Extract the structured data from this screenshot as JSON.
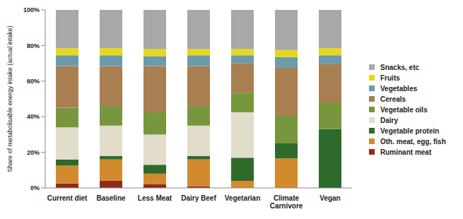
{
  "chart_data": {
    "type": "bar",
    "stacked": true,
    "grid": false,
    "legend": "right",
    "y_label": "Share of metabolisable energy intake (actual intake)",
    "categories": [
      "Current diet",
      "Baseline",
      "Less Meat",
      "Dairy Beef",
      "Vegetarian",
      "Climate Carnivore",
      "Vegan"
    ],
    "ylim": [
      0,
      100
    ],
    "yticks": [
      {
        "value": 0,
        "label": "0%"
      },
      {
        "value": 20,
        "label": "20%"
      },
      {
        "value": 40,
        "label": "40%"
      },
      {
        "value": 60,
        "label": "60%"
      },
      {
        "value": 80,
        "label": "80%"
      },
      {
        "value": 100,
        "label": "100%"
      }
    ],
    "series": [
      {
        "name": "Ruminant meat",
        "color": "#8e2a1e",
        "values": [
          2.5,
          4,
          2,
          1,
          0,
          0,
          0
        ]
      },
      {
        "name": "Oth. meat, egg, fish",
        "color": "#d38a2c",
        "values": [
          10,
          12,
          6,
          15,
          4,
          16.5,
          0
        ]
      },
      {
        "name": "Vegetable protein",
        "color": "#2f6a2d",
        "values": [
          3.5,
          2,
          5,
          2,
          13,
          8.5,
          33
        ]
      },
      {
        "name": "Dairy",
        "color": "#e2dccb",
        "values": [
          18,
          17,
          17,
          17,
          25.5,
          0,
          0
        ]
      },
      {
        "name": "Vegetable oils",
        "color": "#78963d",
        "values": [
          11,
          11,
          12.5,
          11,
          11,
          15.5,
          15
        ]
      },
      {
        "name": "Cereals",
        "color": "#a97f52",
        "values": [
          23.5,
          22.5,
          26,
          22.5,
          16.5,
          27,
          21.5
        ]
      },
      {
        "name": "Vegetables",
        "color": "#6c9aaa",
        "values": [
          6,
          6,
          5.5,
          6,
          4.5,
          6,
          5
        ]
      },
      {
        "name": "Fruits",
        "color": "#e6d81c",
        "values": [
          4,
          4,
          4,
          3.5,
          3.5,
          4,
          4
        ]
      },
      {
        "name": "Snacks, etc",
        "color": "#a8a8a8",
        "values": [
          21.5,
          21.5,
          22,
          22,
          22,
          22.5,
          21.5
        ]
      }
    ]
  }
}
